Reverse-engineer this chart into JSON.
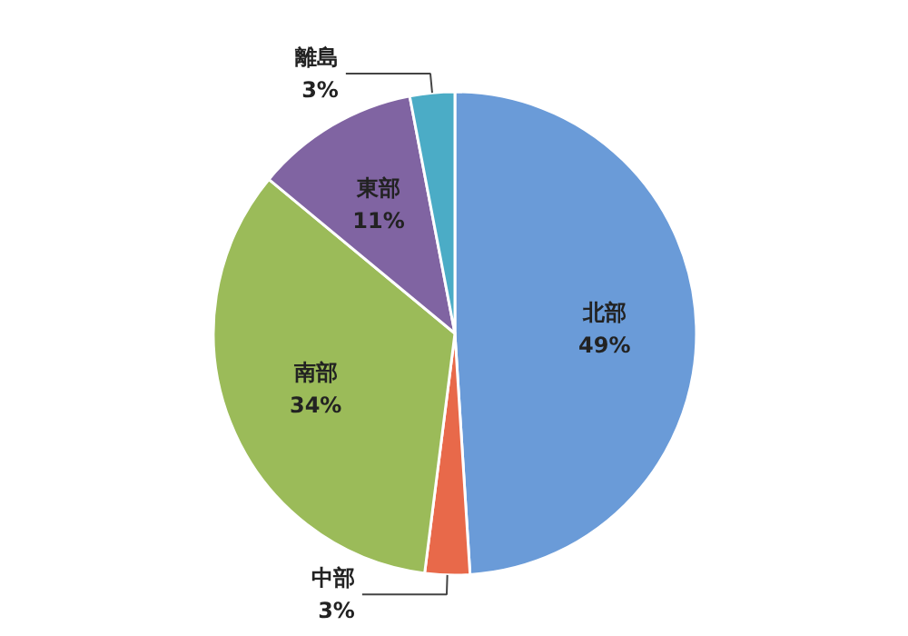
{
  "chart_data": {
    "type": "pie",
    "categories": [
      "北部",
      "中部",
      "南部",
      "東部",
      "離島"
    ],
    "values": [
      49,
      3,
      34,
      11,
      3
    ],
    "value_labels": [
      "49%",
      "3%",
      "34%",
      "11%",
      "3%"
    ],
    "colors": [
      "#6a9bd8",
      "#e8694a",
      "#9bbb59",
      "#8064a2",
      "#4bacc6"
    ]
  }
}
